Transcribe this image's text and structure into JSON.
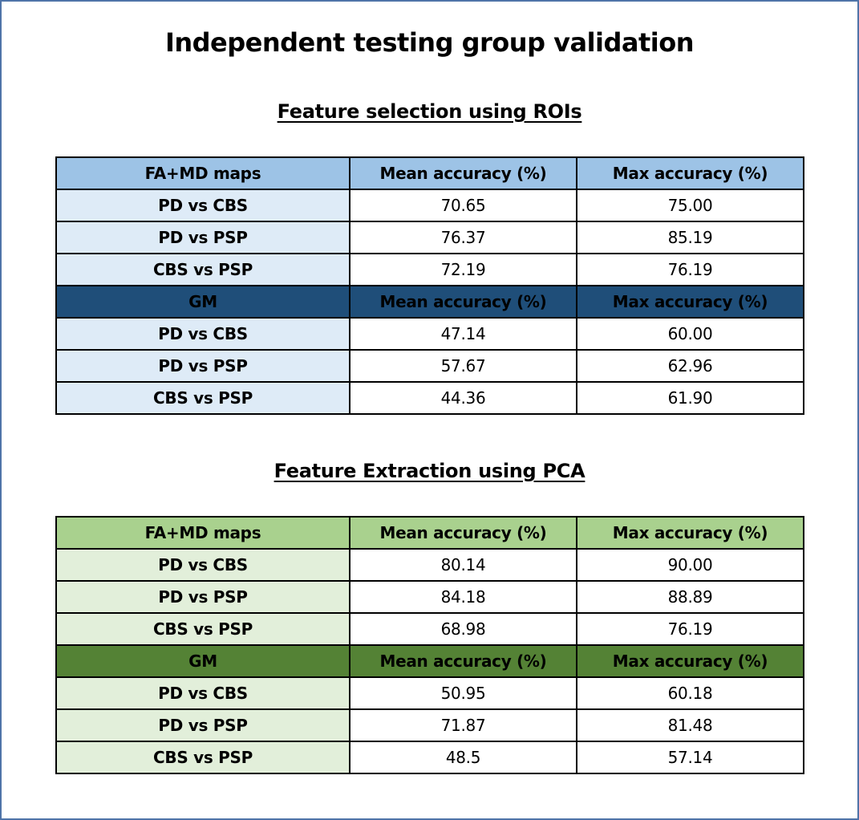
{
  "title": "Independent testing group validation",
  "sections": [
    {
      "title": "Feature selection using ROIs",
      "groups": [
        {
          "header": [
            "FA+MD maps",
            "Mean accuracy (%)",
            "Max accuracy (%)"
          ],
          "rows": [
            [
              "PD vs CBS",
              "70.65",
              "75.00"
            ],
            [
              "PD vs PSP",
              "76.37",
              "85.19"
            ],
            [
              "CBS vs PSP",
              "72.19",
              "76.19"
            ]
          ]
        },
        {
          "header": [
            "GM",
            "Mean accuracy (%)",
            "Max accuracy (%)"
          ],
          "rows": [
            [
              "PD vs CBS",
              "47.14",
              "60.00"
            ],
            [
              "PD vs PSP",
              "57.67",
              "62.96"
            ],
            [
              "CBS vs PSP",
              "44.36",
              "61.90"
            ]
          ]
        }
      ]
    },
    {
      "title": "Feature Extraction using PCA",
      "groups": [
        {
          "header": [
            "FA+MD maps",
            "Mean accuracy (%)",
            "Max accuracy (%)"
          ],
          "rows": [
            [
              "PD vs CBS",
              "80.14",
              "90.00"
            ],
            [
              "PD vs PSP",
              "84.18",
              "88.89"
            ],
            [
              "CBS vs PSP",
              "68.98",
              "76.19"
            ]
          ]
        },
        {
          "header": [
            "GM",
            "Mean accuracy (%)",
            "Max accuracy (%)"
          ],
          "rows": [
            [
              "PD vs CBS",
              "50.95",
              "60.18"
            ],
            [
              "PD vs PSP",
              "71.87",
              "81.48"
            ],
            [
              "CBS vs PSP",
              "48.5",
              "57.14"
            ]
          ]
        }
      ]
    }
  ],
  "colors": {
    "roi_header_light": "#9dc3e6",
    "roi_header_dark": "#1f4e79",
    "roi_label_bg": "#deebf7",
    "pca_header_light": "#a9d18e",
    "pca_header_dark": "#548235",
    "pca_label_bg": "#e2efda",
    "frame_border": "#4f74a8"
  }
}
